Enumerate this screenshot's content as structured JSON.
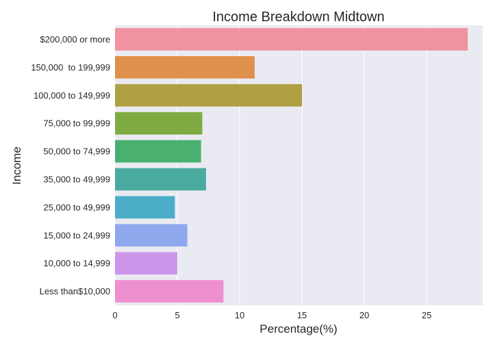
{
  "chart_data": {
    "type": "bar",
    "orientation": "horizontal",
    "title": "Income Breakdown Midtown",
    "xlabel": "Percentage(%)",
    "ylabel": "Income",
    "xlim": [
      0,
      29.5
    ],
    "xticks": [
      0,
      5,
      10,
      15,
      20,
      25
    ],
    "grid": true,
    "categories": [
      "$200,000 or more",
      "150,000  to 199,999",
      "100,000 to 149,999",
      "75,000 to 99,999",
      "50,000 to 74,999",
      "35,000 to 49,999",
      "25,000 to 49,999",
      "15,000 to 24,999",
      "10,000 to 14,999",
      "Less than$10,000"
    ],
    "values": [
      28.3,
      11.2,
      15.0,
      7.0,
      6.9,
      7.3,
      4.8,
      5.8,
      5.0,
      8.7
    ],
    "colors": [
      "#f0929f",
      "#df914b",
      "#afa044",
      "#7fab43",
      "#49b06f",
      "#49aba0",
      "#4caec8",
      "#8fa7ec",
      "#cd95ea",
      "#ee8fcf"
    ],
    "background": "#eaeaf2",
    "gridcolor": "#ffffff"
  }
}
